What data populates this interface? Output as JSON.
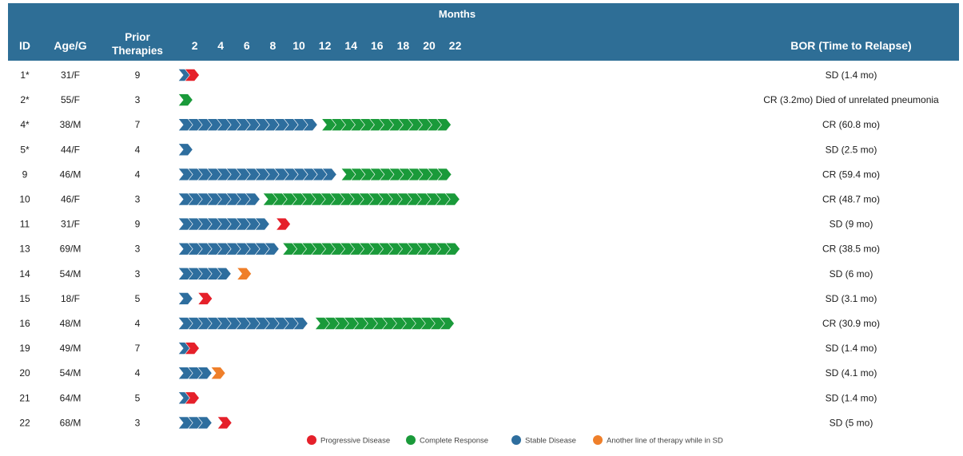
{
  "chart_data": {
    "type": "swimmer",
    "header": {
      "group_label": "Months",
      "id": "ID",
      "age": "Age/G",
      "prior_line1": "Prior",
      "prior_line2": "Therapies",
      "bor": "BOR (Time to Relapse)"
    },
    "x_ticks": [
      "2",
      "4",
      "6",
      "8",
      "10",
      "12",
      "14",
      "16",
      "18",
      "20",
      "22"
    ],
    "x_range": [
      0,
      23
    ],
    "colors": {
      "header_bg": "#2e6e96",
      "stable": "#2e6e9e",
      "complete": "#1a9a3a",
      "progressive": "#e5202a",
      "other": "#ef7f2a"
    },
    "legend": [
      {
        "key": "progressive",
        "label": "Progressive Disease"
      },
      {
        "key": "complete",
        "label": "Complete Response"
      },
      {
        "key": "stable",
        "label": "Stable Disease"
      },
      {
        "key": "other",
        "label": "Another line of therapy while in SD"
      }
    ],
    "rows": [
      {
        "id": "1*",
        "age": "31/F",
        "prior": "9",
        "bor": "SD (1.4 mo)",
        "segments": [
          {
            "status": "stable",
            "months": 0.5
          },
          {
            "status": "progressive",
            "months": 0.5
          }
        ]
      },
      {
        "id": "2*",
        "age": "55/F",
        "prior": "3",
        "bor": "CR (3.2mo) Died of unrelated pneumonia",
        "segments": [
          {
            "status": "complete",
            "months": 1.5
          }
        ]
      },
      {
        "id": "4*",
        "age": "38/M",
        "prior": "7",
        "bor": "CR (60.8 mo)",
        "segments": [
          {
            "status": "stable",
            "months": 11
          },
          {
            "status": "complete",
            "months": 10.5
          }
        ]
      },
      {
        "id": "5*",
        "age": "44/F",
        "prior": "4",
        "bor": "SD (2.5 mo)",
        "segments": [
          {
            "status": "stable",
            "months": 0.5
          }
        ]
      },
      {
        "id": "9",
        "age": "46/M",
        "prior": "4",
        "bor": "CR (59.4 mo)",
        "segments": [
          {
            "status": "stable",
            "months": 12.5
          },
          {
            "status": "complete",
            "months": 9
          }
        ]
      },
      {
        "id": "10",
        "age": "46/F",
        "prior": "3",
        "bor": "CR (48.7 mo)",
        "segments": [
          {
            "status": "stable",
            "months": 6.5
          },
          {
            "status": "complete",
            "months": 15
          }
        ]
      },
      {
        "id": "11",
        "age": "31/F",
        "prior": "9",
        "bor": "SD (9 mo)",
        "segments": [
          {
            "status": "stable",
            "months": 7.5
          },
          {
            "status": "progressive",
            "months": 0.5
          }
        ]
      },
      {
        "id": "13",
        "age": "69/M",
        "prior": "3",
        "bor": "CR (38.5 mo)",
        "segments": [
          {
            "status": "stable",
            "months": 8
          },
          {
            "status": "complete",
            "months": 13.5
          }
        ]
      },
      {
        "id": "14",
        "age": "54/M",
        "prior": "3",
        "bor": "SD (6 mo)",
        "segments": [
          {
            "status": "stable",
            "months": 4.5
          },
          {
            "status": "other",
            "months": 0.5
          }
        ]
      },
      {
        "id": "15",
        "age": "18/F",
        "prior": "5",
        "bor": "SD (3.1 mo)",
        "segments": [
          {
            "status": "stable",
            "months": 1.5
          },
          {
            "status": "progressive",
            "months": 0.5
          }
        ]
      },
      {
        "id": "16",
        "age": "48/M",
        "prior": "4",
        "bor": "CR (30.9 mo)",
        "segments": [
          {
            "status": "stable",
            "months": 10.5
          },
          {
            "status": "complete",
            "months": 11
          }
        ]
      },
      {
        "id": "19",
        "age": "49/M",
        "prior": "7",
        "bor": "SD (1.4 mo)",
        "segments": [
          {
            "status": "stable",
            "months": 0.5
          },
          {
            "status": "progressive",
            "months": 0.5
          }
        ]
      },
      {
        "id": "20",
        "age": "54/M",
        "prior": "4",
        "bor": "SD (4.1 mo)",
        "segments": [
          {
            "status": "stable",
            "months": 2.5
          },
          {
            "status": "other",
            "months": 0.5
          }
        ]
      },
      {
        "id": "21",
        "age": "64/M",
        "prior": "5",
        "bor": "SD (1.4 mo)",
        "segments": [
          {
            "status": "stable",
            "months": 0.5
          },
          {
            "status": "progressive",
            "months": 0.5
          }
        ]
      },
      {
        "id": "22",
        "age": "68/M",
        "prior": "3",
        "bor": "SD (5 mo)",
        "segments": [
          {
            "status": "stable",
            "months": 3
          },
          {
            "status": "progressive",
            "months": 0.5
          }
        ]
      }
    ]
  }
}
